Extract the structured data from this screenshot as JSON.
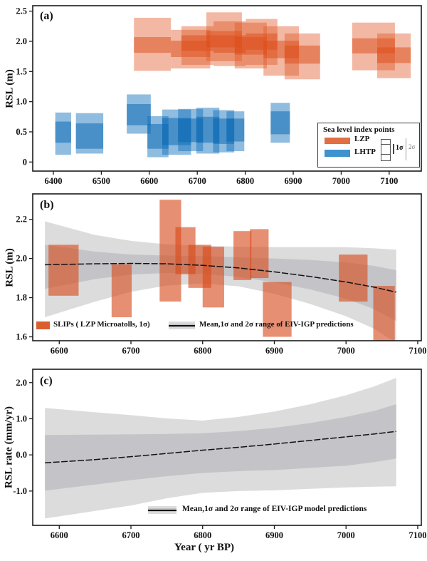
{
  "figure": {
    "xlabel": "Year ( yr BP)",
    "colors": {
      "frame": "#1a1a1a",
      "text": "#111111",
      "lzp_outer": "rgba(224,86,36,0.42)",
      "lzp_inner": "rgba(219,75,25,0.50)",
      "lhtp_outer": "rgba(17,112,188,0.47)",
      "lhtp_inner": "rgba(10,104,178,0.52)",
      "slip": "rgba(216,75,28,0.62)",
      "band1": "#c4c4c8",
      "band2": "#dcdcdc",
      "mean_line": "#111111",
      "lzp_swatch": "#e06f44",
      "lhtp_swatch": "#3e92cd",
      "slip_swatch": "#d95f30"
    }
  },
  "chart_data": [
    {
      "type": "box-ranges",
      "tag": "(a)",
      "ylabel": "RSL (m)",
      "xlim": [
        6357,
        7167
      ],
      "ylim": [
        -0.15,
        2.59
      ],
      "xticks": [
        {
          "v": 6400,
          "label": "6400"
        },
        {
          "v": 6500,
          "label": "6500"
        },
        {
          "v": 6600,
          "label": "6600"
        },
        {
          "v": 6700,
          "label": "6700"
        },
        {
          "v": 6800,
          "label": "6800"
        },
        {
          "v": 6900,
          "label": "6900"
        },
        {
          "v": 7000,
          "label": "7000"
        },
        {
          "v": 7100,
          "label": "7100"
        }
      ],
      "yticks": [
        {
          "v": 0,
          "label": "0"
        },
        {
          "v": 0.5,
          "label": "0.5"
        },
        {
          "v": 1.0,
          "label": "1.0"
        },
        {
          "v": 1.5,
          "label": "1.5"
        },
        {
          "v": 2.0,
          "label": "2.0"
        },
        {
          "v": 2.5,
          "label": "2.5"
        }
      ],
      "series": [
        {
          "name": "LZP",
          "color_key": "lzp",
          "boxes": [
            {
              "x": [
                6568,
                6645
              ],
              "y1": [
                1.81,
                2.07
              ],
              "y2": [
                1.51,
                2.39
              ]
            },
            {
              "x": [
                6645,
                6727
              ],
              "y1": [
                1.74,
                2.01
              ],
              "y2": [
                1.55,
                2.19
              ]
            },
            {
              "x": [
                6667,
                6734
              ],
              "y1": [
                1.84,
                2.1
              ],
              "y2": [
                1.61,
                2.25
              ]
            },
            {
              "x": [
                6719,
                6793
              ],
              "y1": [
                1.9,
                2.17
              ],
              "y2": [
                1.67,
                2.48
              ]
            },
            {
              "x": [
                6734,
                6801
              ],
              "y1": [
                1.81,
                2.1
              ],
              "y2": [
                1.59,
                2.33
              ]
            },
            {
              "x": [
                6778,
                6845
              ],
              "y1": [
                1.78,
                2.07
              ],
              "y2": [
                1.55,
                2.31
              ]
            },
            {
              "x": [
                6801,
                6867
              ],
              "y1": [
                1.86,
                2.13
              ],
              "y2": [
                1.61,
                2.37
              ]
            },
            {
              "x": [
                6838,
                6912
              ],
              "y1": [
                1.72,
                2.01
              ],
              "y2": [
                1.43,
                2.25
              ]
            },
            {
              "x": [
                6882,
                6956
              ],
              "y1": [
                1.63,
                1.93
              ],
              "y2": [
                1.37,
                2.13
              ]
            },
            {
              "x": [
                7023,
                7112
              ],
              "y1": [
                1.8,
                2.05
              ],
              "y2": [
                1.52,
                2.31
              ]
            },
            {
              "x": [
                7075,
                7145
              ],
              "y1": [
                1.64,
                1.9
              ],
              "y2": [
                1.39,
                2.13
              ]
            }
          ]
        },
        {
          "name": "LHTP",
          "color_key": "lhtp",
          "boxes": [
            {
              "x": [
                6404,
                6437
              ],
              "y1": [
                0.32,
                0.67
              ],
              "y2": [
                0.12,
                0.82
              ]
            },
            {
              "x": [
                6447,
                6504
              ],
              "y1": [
                0.22,
                0.64
              ],
              "y2": [
                0.14,
                0.81
              ]
            },
            {
              "x": [
                6553,
                6603
              ],
              "y1": [
                0.61,
                0.96
              ],
              "y2": [
                0.47,
                1.12
              ]
            },
            {
              "x": [
                6596,
                6640
              ],
              "y1": [
                0.22,
                0.63
              ],
              "y2": [
                0.08,
                0.76
              ]
            },
            {
              "x": [
                6627,
                6687
              ],
              "y1": [
                0.28,
                0.73
              ],
              "y2": [
                0.12,
                0.87
              ]
            },
            {
              "x": [
                6660,
                6712
              ],
              "y1": [
                0.33,
                0.72
              ],
              "y2": [
                0.18,
                0.88
              ]
            },
            {
              "x": [
                6698,
                6746
              ],
              "y1": [
                0.32,
                0.75
              ],
              "y2": [
                0.14,
                0.9
              ]
            },
            {
              "x": [
                6733,
                6777
              ],
              "y1": [
                0.3,
                0.72
              ],
              "y2": [
                0.16,
                0.86
              ]
            },
            {
              "x": [
                6761,
                6798
              ],
              "y1": [
                0.34,
                0.72
              ],
              "y2": [
                0.18,
                0.84
              ]
            },
            {
              "x": [
                6853,
                6893
              ],
              "y1": [
                0.46,
                0.84
              ],
              "y2": [
                0.32,
                0.98
              ]
            }
          ]
        }
      ],
      "legend": {
        "title": "Sea level index points",
        "items": [
          "LZP",
          "LHTP"
        ],
        "sigma1": "1σ",
        "sigma2": "2σ"
      }
    },
    {
      "type": "boxes+gp-band",
      "tag": "(b)",
      "ylabel": "RSL (m)",
      "xlim": [
        6563,
        7105
      ],
      "ylim": [
        1.58,
        2.33
      ],
      "xticks": [
        {
          "v": 6600,
          "label": "6600"
        },
        {
          "v": 6700,
          "label": "6700"
        },
        {
          "v": 6800,
          "label": "6800"
        },
        {
          "v": 6900,
          "label": "6900"
        },
        {
          "v": 7000,
          "label": "7000"
        },
        {
          "v": 7100,
          "label": "7100"
        }
      ],
      "yticks": [
        {
          "v": 1.6,
          "label": "1.6"
        },
        {
          "v": 1.8,
          "label": "1.8"
        },
        {
          "v": 2.0,
          "label": "2.0"
        },
        {
          "v": 2.2,
          "label": "2.2"
        }
      ],
      "slips": [
        {
          "x": [
            6585,
            6627
          ],
          "y": [
            1.81,
            2.07
          ]
        },
        {
          "x": [
            6673,
            6701
          ],
          "y": [
            1.7,
            1.97
          ]
        },
        {
          "x": [
            6740,
            6770
          ],
          "y": [
            1.78,
            2.3
          ]
        },
        {
          "x": [
            6762,
            6790
          ],
          "y": [
            1.92,
            2.16
          ]
        },
        {
          "x": [
            6780,
            6812
          ],
          "y": [
            1.85,
            2.07
          ]
        },
        {
          "x": [
            6800,
            6830
          ],
          "y": [
            1.75,
            2.06
          ]
        },
        {
          "x": [
            6843,
            6868
          ],
          "y": [
            1.89,
            2.14
          ]
        },
        {
          "x": [
            6866,
            6892
          ],
          "y": [
            1.9,
            2.15
          ]
        },
        {
          "x": [
            6884,
            6924
          ],
          "y": [
            1.6,
            1.88
          ]
        },
        {
          "x": [
            6990,
            7030
          ],
          "y": [
            1.78,
            2.02
          ]
        },
        {
          "x": [
            7038,
            7068
          ],
          "y": [
            1.58,
            1.86
          ]
        }
      ],
      "gp": {
        "x": [
          6580,
          6650,
          6700,
          6750,
          6800,
          6850,
          6900,
          6950,
          7000,
          7040,
          7070
        ],
        "mean": [
          1.968,
          1.973,
          1.975,
          1.973,
          1.965,
          1.952,
          1.932,
          1.908,
          1.88,
          1.853,
          1.828
        ],
        "hi1": [
          2.07,
          2.035,
          2.02,
          2.015,
          2.012,
          2.006,
          2.0,
          1.993,
          1.98,
          1.962,
          1.94
        ],
        "lo1": [
          1.845,
          1.895,
          1.918,
          1.926,
          1.922,
          1.906,
          1.878,
          1.842,
          1.795,
          1.74,
          1.68
        ],
        "hi2": [
          2.19,
          2.12,
          2.09,
          2.072,
          2.065,
          2.06,
          2.058,
          2.058,
          2.058,
          2.052,
          2.045
        ],
        "lo2": [
          1.7,
          1.78,
          1.83,
          1.862,
          1.872,
          1.858,
          1.82,
          1.768,
          1.705,
          1.64,
          1.568
        ]
      },
      "legend": {
        "slips": "SLIPs ( LZP Microatolls, 1σ)",
        "gp": "Mean,1σ and 2σ range of EIV-IGP predictions"
      }
    },
    {
      "type": "gp-band",
      "tag": "(c)",
      "ylabel": "RSL rate (mm/yr)",
      "xlim": [
        6563,
        7105
      ],
      "ylim": [
        -1.95,
        2.37
      ],
      "xticks": [
        {
          "v": 6600,
          "label": "6600"
        },
        {
          "v": 6700,
          "label": "6700"
        },
        {
          "v": 6800,
          "label": "6800"
        },
        {
          "v": 6900,
          "label": "6900"
        },
        {
          "v": 7000,
          "label": "7000"
        },
        {
          "v": 7100,
          "label": "7100"
        }
      ],
      "yticks": [
        {
          "v": -1.0,
          "label": "-1.0"
        },
        {
          "v": 0.0,
          "label": "0.0"
        },
        {
          "v": 1.0,
          "label": "1.0"
        },
        {
          "v": 2.0,
          "label": "2.0"
        }
      ],
      "gp": {
        "x": [
          6580,
          6650,
          6700,
          6750,
          6800,
          6850,
          6900,
          6950,
          7000,
          7040,
          7070
        ],
        "mean": [
          -0.22,
          -0.13,
          -0.05,
          0.04,
          0.13,
          0.21,
          0.3,
          0.4,
          0.5,
          0.58,
          0.65
        ],
        "hi1": [
          0.55,
          0.56,
          0.57,
          0.58,
          0.6,
          0.66,
          0.75,
          0.88,
          1.05,
          1.22,
          1.4
        ],
        "lo1": [
          -0.99,
          -0.82,
          -0.7,
          -0.59,
          -0.5,
          -0.45,
          -0.42,
          -0.36,
          -0.3,
          -0.2,
          -0.1
        ],
        "hi2": [
          1.3,
          1.18,
          1.1,
          1.01,
          0.95,
          1.05,
          1.2,
          1.4,
          1.65,
          1.9,
          2.13
        ],
        "lo2": [
          -1.76,
          -1.55,
          -1.4,
          -1.2,
          -1.05,
          -1.0,
          -0.98,
          -0.94,
          -0.9,
          -0.88,
          -0.87
        ]
      },
      "legend": {
        "gp": "Mean,1σ and 2σ range of EIV-IGP model predictions"
      }
    }
  ]
}
